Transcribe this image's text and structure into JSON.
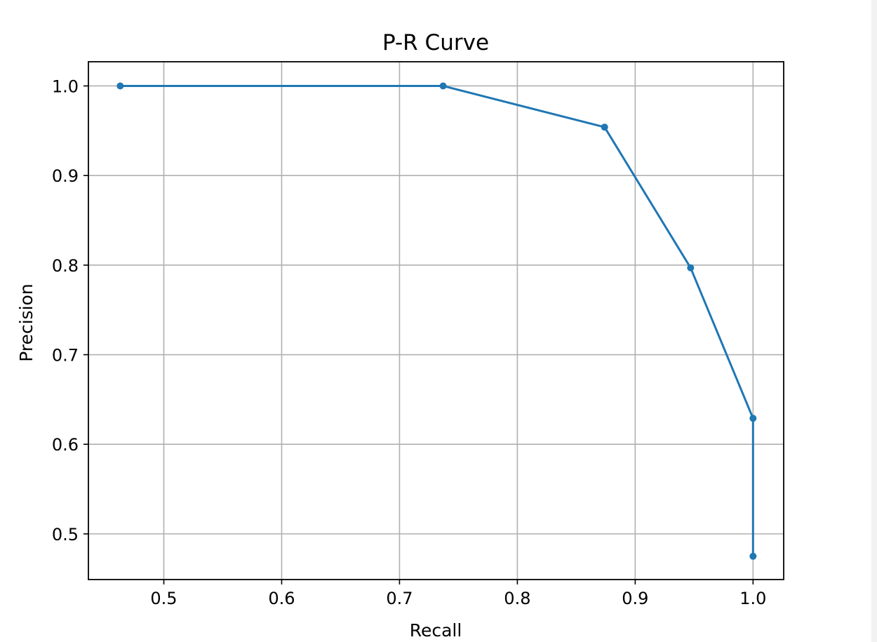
{
  "chart_data": {
    "type": "line",
    "title": "P-R Curve",
    "xlabel": "Recall",
    "ylabel": "Precision",
    "xlim": [
      0.436,
      1.026
    ],
    "ylim": [
      0.449,
      1.027
    ],
    "xticks": [
      0.5,
      0.6,
      0.7,
      0.8,
      0.9,
      1.0
    ],
    "xtick_labels": [
      "0.5",
      "0.6",
      "0.7",
      "0.8",
      "0.9",
      "1.0"
    ],
    "yticks": [
      0.5,
      0.6,
      0.7,
      0.8,
      0.9,
      1.0
    ],
    "ytick_labels": [
      "0.5",
      "0.6",
      "0.7",
      "0.8",
      "0.9",
      "1.0"
    ],
    "grid": true,
    "series": [
      {
        "color": "#1f77b4",
        "marker": "circle",
        "x": [
          0.463,
          0.737,
          0.874,
          0.947,
          1.0,
          1.0
        ],
        "y": [
          1.0,
          1.0,
          0.954,
          0.797,
          0.629,
          0.475
        ]
      }
    ]
  }
}
